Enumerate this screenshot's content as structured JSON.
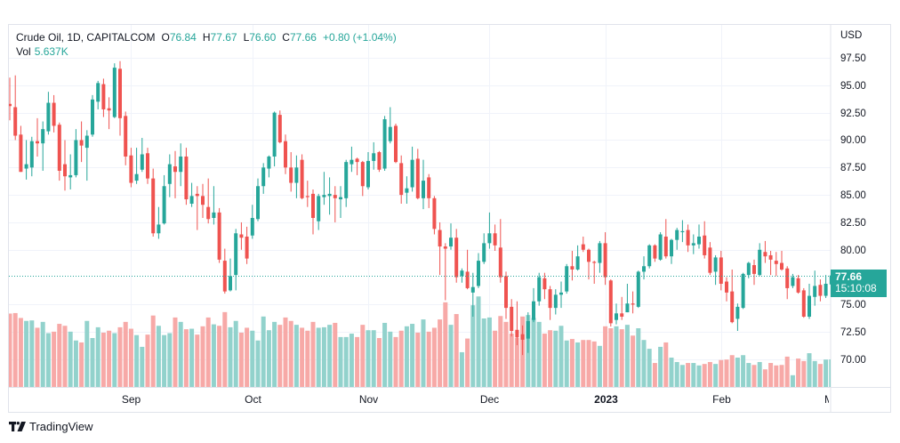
{
  "legend": {
    "symbol": "Crude Oil, 1D, CAPITALCOM",
    "open_key": "O",
    "open": "76.84",
    "high_key": "H",
    "high": "77.67",
    "low_key": "L",
    "low": "76.60",
    "close_key": "C",
    "close": "77.66",
    "change": "+0.80 (+1.04%)",
    "vol_key": "Vol",
    "vol": "5.637K"
  },
  "price_axis": {
    "currency": "USD",
    "last_price": "77.66",
    "countdown": "15:10:08"
  },
  "branding": {
    "name": "TradingView",
    "logo_icon": "tradingview-logo-icon"
  },
  "colors": {
    "up": "#26a69a",
    "down": "#ef5350",
    "up_volume": "#92d2cc",
    "down_volume": "#f7a9a7",
    "grid": "#f0f3fa",
    "border": "#e0e3eb"
  },
  "chart_data": {
    "type": "candlestick",
    "title": "Crude Oil, 1D, CAPITALCOM",
    "ylabel": "USD",
    "xlabel": "",
    "ylim": [
      68.5,
      99.0
    ],
    "grid": true,
    "y_ticks": [
      "97.50",
      "95.00",
      "92.50",
      "90.00",
      "87.50",
      "85.00",
      "82.50",
      "80.00",
      "75.00",
      "72.50",
      "70.00"
    ],
    "x_ticks": [
      {
        "label": "Sep",
        "index": 22
      },
      {
        "label": "Oct",
        "index": 44
      },
      {
        "label": "Nov",
        "index": 65
      },
      {
        "label": "Dec",
        "index": 87
      },
      {
        "label": "2023",
        "index": 108,
        "year": true
      },
      {
        "label": "Feb",
        "index": 129
      },
      {
        "label": "M",
        "index": 148,
        "clipped": true
      }
    ],
    "last_price": 77.66,
    "ohlc_columns": [
      "open",
      "high",
      "low",
      "close"
    ],
    "ohlc": [
      [
        93.3,
        95.7,
        91.8,
        93.1
      ],
      [
        93.0,
        95.9,
        90.0,
        90.4
      ],
      [
        90.5,
        91.3,
        87.1,
        87.1
      ],
      [
        87.4,
        90.0,
        86.4,
        87.8
      ],
      [
        87.5,
        90.3,
        86.7,
        89.9
      ],
      [
        89.9,
        92.0,
        88.5,
        89.7
      ],
      [
        89.7,
        91.7,
        87.2,
        91.0
      ],
      [
        90.8,
        94.4,
        90.5,
        93.4
      ],
      [
        93.4,
        94.1,
        90.7,
        91.3
      ],
      [
        91.4,
        91.6,
        86.3,
        87.2
      ],
      [
        87.8,
        90.0,
        85.4,
        86.7
      ],
      [
        86.6,
        88.7,
        85.5,
        86.8
      ],
      [
        86.8,
        91.0,
        86.6,
        90.0
      ],
      [
        90.0,
        91.7,
        88.0,
        89.5
      ],
      [
        89.3,
        90.9,
        86.3,
        90.4
      ],
      [
        90.5,
        94.1,
        90.3,
        93.7
      ],
      [
        93.5,
        95.4,
        92.8,
        95.2
      ],
      [
        95.1,
        95.6,
        92.1,
        92.8
      ],
      [
        92.9,
        93.9,
        91.0,
        92.7
      ],
      [
        92.1,
        97.0,
        92.0,
        96.6
      ],
      [
        96.5,
        97.2,
        90.4,
        92.0
      ],
      [
        92.2,
        92.6,
        87.7,
        88.5
      ],
      [
        88.6,
        89.3,
        85.7,
        86.1
      ],
      [
        86.3,
        89.3,
        86.0,
        86.9
      ],
      [
        87.3,
        90.2,
        87.1,
        88.7
      ],
      [
        88.8,
        89.3,
        86.0,
        86.5
      ],
      [
        86.5,
        87.4,
        81.2,
        81.5
      ],
      [
        81.5,
        83.9,
        81.0,
        82.3
      ],
      [
        82.4,
        86.8,
        82.3,
        85.8
      ],
      [
        86.0,
        88.7,
        84.8,
        87.8
      ],
      [
        87.6,
        89.0,
        84.7,
        87.1
      ],
      [
        87.1,
        89.7,
        85.8,
        88.5
      ],
      [
        88.5,
        89.3,
        84.1,
        84.6
      ],
      [
        84.2,
        86.1,
        83.9,
        84.9
      ],
      [
        85.1,
        85.8,
        81.8,
        84.9
      ],
      [
        84.9,
        86.0,
        82.9,
        84.1
      ],
      [
        83.9,
        86.5,
        82.4,
        82.8
      ],
      [
        82.9,
        85.8,
        82.3,
        83.4
      ],
      [
        83.4,
        83.8,
        78.8,
        79.1
      ],
      [
        79.0,
        80.1,
        76.0,
        76.2
      ],
      [
        76.3,
        79.2,
        76.2,
        77.6
      ],
      [
        77.7,
        81.9,
        76.3,
        81.5
      ],
      [
        81.4,
        82.5,
        80.0,
        81.1
      ],
      [
        81.2,
        82.1,
        78.7,
        79.2
      ],
      [
        81.3,
        84.1,
        81.0,
        82.9
      ],
      [
        82.8,
        86.5,
        82.6,
        85.8
      ],
      [
        85.8,
        87.9,
        85.1,
        87.5
      ],
      [
        87.4,
        88.6,
        86.6,
        88.5
      ],
      [
        88.5,
        92.6,
        87.6,
        92.5
      ],
      [
        92.3,
        92.7,
        89.7,
        89.8
      ],
      [
        89.9,
        90.5,
        86.9,
        87.5
      ],
      [
        87.5,
        88.9,
        85.3,
        86.1
      ],
      [
        86.1,
        88.6,
        84.7,
        87.5
      ],
      [
        88.2,
        88.7,
        84.6,
        84.7
      ],
      [
        84.9,
        86.3,
        83.9,
        84.8
      ],
      [
        85.1,
        85.5,
        81.4,
        82.9
      ],
      [
        82.6,
        85.1,
        81.8,
        84.9
      ],
      [
        84.8,
        87.1,
        84.1,
        85.0
      ],
      [
        84.9,
        86.6,
        83.2,
        85.1
      ],
      [
        85.0,
        85.8,
        82.5,
        84.7
      ],
      [
        84.6,
        85.8,
        82.9,
        84.8
      ],
      [
        84.7,
        88.2,
        83.9,
        88.0
      ],
      [
        87.8,
        89.4,
        87.1,
        88.2
      ],
      [
        88.3,
        88.4,
        86.8,
        88.0
      ],
      [
        88.0,
        88.1,
        84.9,
        85.8
      ],
      [
        85.7,
        88.9,
        85.5,
        88.1
      ],
      [
        88.1,
        89.8,
        87.3,
        88.8
      ],
      [
        88.9,
        89.0,
        87.1,
        87.3
      ],
      [
        87.4,
        92.2,
        87.2,
        91.9
      ],
      [
        89.9,
        93.0,
        89.7,
        91.2
      ],
      [
        91.3,
        91.5,
        87.9,
        88.0
      ],
      [
        87.9,
        88.6,
        84.2,
        85.0
      ],
      [
        85.2,
        86.7,
        84.2,
        85.6
      ],
      [
        85.7,
        89.4,
        85.3,
        88.2
      ],
      [
        88.3,
        89.2,
        84.6,
        84.7
      ],
      [
        84.7,
        88.2,
        83.7,
        86.3
      ],
      [
        86.6,
        86.9,
        83.8,
        84.7
      ],
      [
        84.7,
        84.9,
        81.4,
        81.9
      ],
      [
        81.8,
        82.5,
        77.7,
        80.3
      ],
      [
        80.3,
        80.6,
        75.4,
        80.1
      ],
      [
        80.3,
        82.4,
        80.0,
        81.1
      ],
      [
        81.1,
        81.9,
        77.0,
        77.5
      ],
      [
        77.6,
        78.3,
        77.0,
        78.1
      ],
      [
        78.0,
        80.0,
        76.4,
        76.5
      ],
      [
        76.1,
        77.9,
        73.9,
        76.6
      ],
      [
        76.7,
        79.7,
        76.5,
        79.0
      ],
      [
        78.9,
        81.5,
        78.7,
        80.6
      ],
      [
        80.6,
        83.4,
        80.1,
        81.5
      ],
      [
        81.5,
        82.3,
        79.9,
        80.4
      ],
      [
        80.2,
        82.8,
        77.0,
        77.5
      ],
      [
        77.6,
        78.0,
        73.7,
        74.7
      ],
      [
        74.8,
        75.5,
        72.1,
        72.6
      ],
      [
        72.7,
        75.3,
        71.3,
        72.0
      ],
      [
        72.3,
        73.1,
        70.4,
        71.8
      ],
      [
        71.9,
        74.3,
        70.6,
        73.5
      ],
      [
        73.6,
        76.5,
        73.4,
        75.3
      ],
      [
        75.3,
        77.9,
        74.9,
        77.5
      ],
      [
        77.4,
        77.9,
        75.5,
        76.4
      ],
      [
        76.4,
        76.7,
        73.6,
        74.7
      ],
      [
        74.7,
        76.4,
        74.1,
        75.9
      ],
      [
        75.9,
        77.1,
        74.7,
        76.1
      ],
      [
        76.2,
        78.7,
        76.0,
        78.5
      ],
      [
        78.5,
        79.9,
        77.2,
        78.2
      ],
      [
        78.2,
        80.4,
        78.1,
        79.4
      ],
      [
        80.5,
        81.2,
        79.8,
        80.0
      ],
      [
        80.0,
        80.1,
        77.3,
        78.9
      ],
      [
        78.9,
        79.0,
        76.9,
        78.8
      ],
      [
        78.8,
        80.8,
        77.9,
        80.6
      ],
      [
        80.6,
        81.6,
        76.8,
        77.5
      ],
      [
        77.2,
        77.3,
        73.0,
        73.3
      ],
      [
        73.6,
        75.1,
        73.2,
        74.2
      ],
      [
        74.2,
        75.7,
        73.6,
        73.9
      ],
      [
        74.3,
        76.9,
        74.3,
        75.1
      ],
      [
        75.1,
        76.2,
        74.2,
        75.0
      ],
      [
        74.8,
        78.1,
        74.7,
        78.0
      ],
      [
        78.0,
        79.4,
        77.3,
        78.5
      ],
      [
        78.5,
        80.5,
        78.3,
        80.4
      ],
      [
        80.4,
        80.5,
        78.9,
        79.2
      ],
      [
        79.1,
        81.6,
        79.0,
        81.4
      ],
      [
        81.2,
        82.8,
        79.2,
        79.4
      ],
      [
        79.4,
        81.0,
        78.7,
        80.9
      ],
      [
        80.9,
        82.0,
        80.0,
        81.8
      ],
      [
        81.6,
        82.7,
        80.7,
        81.7
      ],
      [
        81.8,
        82.3,
        79.8,
        80.4
      ],
      [
        80.4,
        81.4,
        79.6,
        80.6
      ],
      [
        80.5,
        82.3,
        80.1,
        81.2
      ],
      [
        81.3,
        82.6,
        79.2,
        79.5
      ],
      [
        80.2,
        80.7,
        77.7,
        77.9
      ],
      [
        78.0,
        79.5,
        76.8,
        79.3
      ],
      [
        79.3,
        79.9,
        76.3,
        76.9
      ],
      [
        77.1,
        77.5,
        75.3,
        76.1
      ],
      [
        76.2,
        78.2,
        73.3,
        73.4
      ],
      [
        73.7,
        75.1,
        72.6,
        74.8
      ],
      [
        74.7,
        77.9,
        74.6,
        77.8
      ],
      [
        77.7,
        78.9,
        77.4,
        78.8
      ],
      [
        78.6,
        79.1,
        76.8,
        77.8
      ],
      [
        77.7,
        80.6,
        77.6,
        80.0
      ],
      [
        79.8,
        80.8,
        78.8,
        79.4
      ],
      [
        79.5,
        79.9,
        77.7,
        79.1
      ],
      [
        79.0,
        79.8,
        77.6,
        78.7
      ],
      [
        78.8,
        79.9,
        78.1,
        78.2
      ],
      [
        78.3,
        78.5,
        75.5,
        76.5
      ],
      [
        76.7,
        77.8,
        76.5,
        77.5
      ],
      [
        77.4,
        77.7,
        76.0,
        76.1
      ],
      [
        76.3,
        76.5,
        73.8,
        73.9
      ],
      [
        73.9,
        76.9,
        73.7,
        75.8
      ],
      [
        75.7,
        78.1,
        74.9,
        76.7
      ],
      [
        76.8,
        77.3,
        75.3,
        75.8
      ],
      [
        75.8,
        77.7,
        75.6,
        76.9
      ],
      [
        76.84,
        77.67,
        76.6,
        77.66
      ]
    ],
    "volume_unit": "K",
    "volume": [
      15.0,
      15.1,
      14.1,
      13.5,
      13.6,
      12.1,
      13.3,
      11.0,
      11.3,
      12.9,
      12.5,
      11.3,
      9.5,
      9.1,
      13.5,
      10.0,
      12.2,
      11.1,
      11.5,
      11.0,
      12.2,
      13.3,
      11.9,
      10.6,
      8.2,
      10.7,
      14.6,
      12.5,
      10.6,
      11.0,
      14.2,
      13.3,
      11.8,
      11.9,
      10.7,
      12.4,
      14.2,
      12.8,
      12.5,
      15.3,
      12.2,
      13.5,
      11.1,
      12.1,
      11.5,
      9.5,
      14.4,
      11.6,
      13.3,
      12.7,
      14.2,
      13.5,
      12.7,
      12.1,
      11.5,
      13.3,
      12.1,
      12.2,
      12.7,
      13.1,
      10.2,
      10.2,
      10.9,
      10.2,
      12.7,
      11.6,
      11.6,
      10.0,
      13.1,
      11.3,
      10.2,
      11.5,
      12.4,
      12.9,
      11.1,
      13.8,
      11.3,
      12.1,
      13.8,
      17.3,
      12.7,
      14.9,
      7.1,
      9.9,
      16.7,
      18.5,
      14.0,
      14.2,
      11.5,
      14.5,
      13.3,
      10.9,
      10.0,
      14.4,
      14.7,
      14.1,
      13.3,
      10.9,
      11.6,
      11.5,
      12.5,
      9.5,
      9.8,
      9.1,
      9.6,
      9.6,
      9.3,
      8.4,
      12.4,
      12.0,
      12.4,
      11.8,
      12.7,
      10.5,
      12.0,
      9.6,
      7.8,
      4.9,
      8.2,
      9.1,
      6.0,
      5.1,
      4.5,
      4.9,
      4.9,
      4.4,
      4.7,
      5.1,
      4.7,
      5.5,
      5.6,
      6.5,
      6.0,
      6.5,
      4.9,
      4.5,
      5.1,
      3.6,
      4.9,
      4.4,
      4.5,
      6.2,
      2.4,
      5.8,
      5.3,
      6.9,
      5.3,
      4.7,
      5.6,
      5.637
    ]
  }
}
